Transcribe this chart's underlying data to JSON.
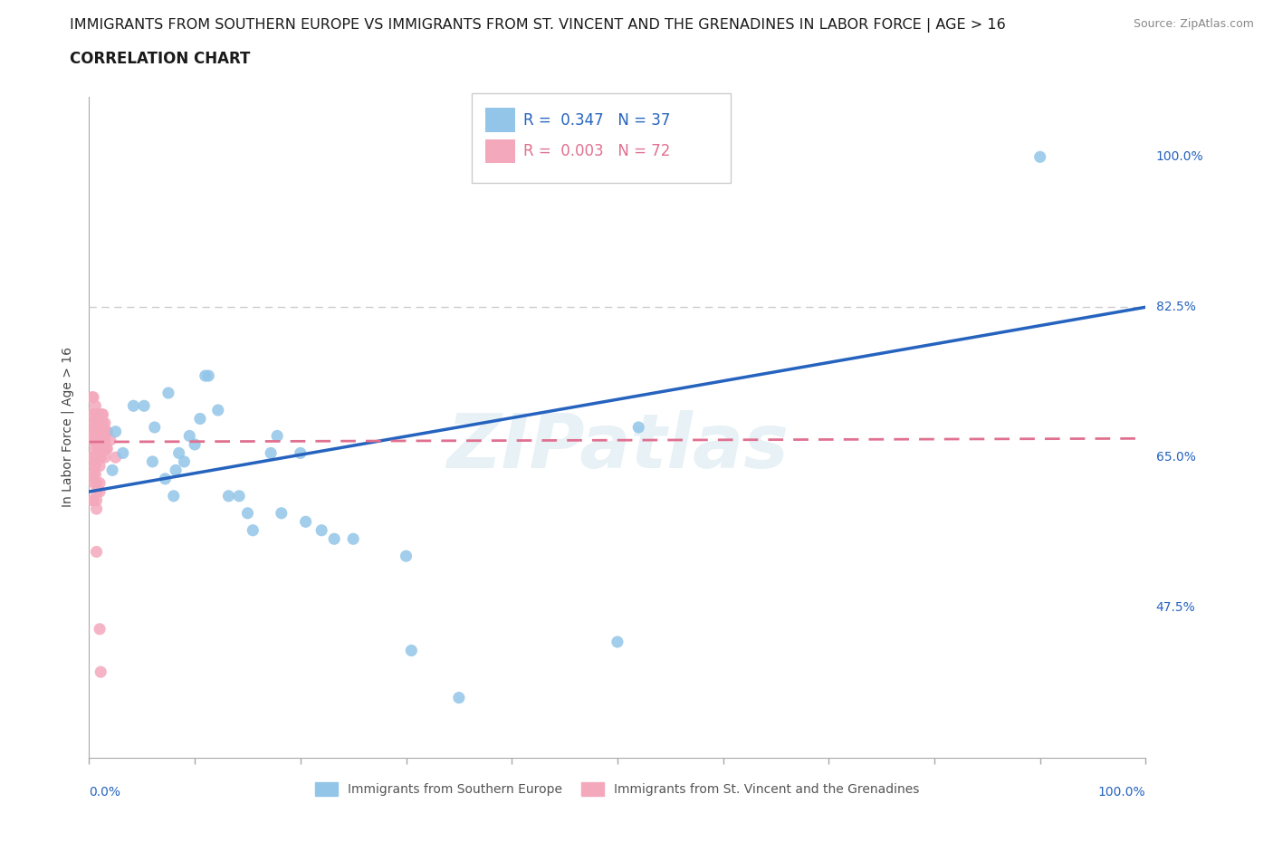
{
  "title_line1": "IMMIGRANTS FROM SOUTHERN EUROPE VS IMMIGRANTS FROM ST. VINCENT AND THE GRENADINES IN LABOR FORCE | AGE > 16",
  "title_line2": "CORRELATION CHART",
  "source_text": "Source: ZipAtlas.com",
  "ylabel": "In Labor Force | Age > 16",
  "xmin": 0.0,
  "xmax": 1.0,
  "ymin": 0.3,
  "ymax": 1.07,
  "yticks": [
    0.475,
    0.65,
    0.825,
    1.0
  ],
  "ytick_labels": [
    "47.5%",
    "65.0%",
    "82.5%",
    "100.0%"
  ],
  "blue_R": "0.347",
  "blue_N": "37",
  "pink_R": "0.003",
  "pink_N": "72",
  "blue_color": "#92C5E8",
  "pink_color": "#F4A8BC",
  "blue_line_color": "#2563BE",
  "pink_line_color": "#E07090",
  "legend_label_blue": "Immigrants from Southern Europe",
  "legend_label_pink": "Immigrants from St. Vincent and the Grenadines",
  "watermark": "ZIPatlas",
  "blue_scatter_x": [
    0.022,
    0.025,
    0.032,
    0.042,
    0.052,
    0.06,
    0.062,
    0.072,
    0.075,
    0.08,
    0.082,
    0.085,
    0.09,
    0.095,
    0.1,
    0.105,
    0.11,
    0.113,
    0.122,
    0.132,
    0.142,
    0.15,
    0.155,
    0.172,
    0.178,
    0.182,
    0.2,
    0.205,
    0.22,
    0.232,
    0.25,
    0.3,
    0.305,
    0.35,
    0.5,
    0.52,
    0.9
  ],
  "blue_scatter_y": [
    0.635,
    0.68,
    0.655,
    0.71,
    0.71,
    0.645,
    0.685,
    0.625,
    0.725,
    0.605,
    0.635,
    0.655,
    0.645,
    0.675,
    0.665,
    0.695,
    0.745,
    0.745,
    0.705,
    0.605,
    0.605,
    0.585,
    0.565,
    0.655,
    0.675,
    0.585,
    0.655,
    0.575,
    0.565,
    0.555,
    0.555,
    0.535,
    0.425,
    0.37,
    0.435,
    0.685,
    1.0
  ],
  "pink_scatter_x": [
    0.003,
    0.003,
    0.003,
    0.003,
    0.003,
    0.003,
    0.003,
    0.003,
    0.004,
    0.004,
    0.004,
    0.004,
    0.004,
    0.004,
    0.004,
    0.004,
    0.005,
    0.005,
    0.005,
    0.005,
    0.005,
    0.005,
    0.005,
    0.006,
    0.006,
    0.006,
    0.006,
    0.006,
    0.006,
    0.006,
    0.006,
    0.007,
    0.007,
    0.007,
    0.007,
    0.007,
    0.008,
    0.008,
    0.008,
    0.008,
    0.009,
    0.009,
    0.009,
    0.009,
    0.009,
    0.01,
    0.01,
    0.01,
    0.01,
    0.01,
    0.011,
    0.011,
    0.011,
    0.011,
    0.012,
    0.012,
    0.013,
    0.013,
    0.013,
    0.013,
    0.014,
    0.014,
    0.015,
    0.015,
    0.015,
    0.015,
    0.016,
    0.016,
    0.017,
    0.017,
    0.02,
    0.025
  ],
  "pink_scatter_y": [
    0.72,
    0.7,
    0.68,
    0.67,
    0.65,
    0.65,
    0.63,
    0.6,
    0.72,
    0.7,
    0.68,
    0.67,
    0.65,
    0.65,
    0.63,
    0.6,
    0.69,
    0.67,
    0.65,
    0.64,
    0.62,
    0.7,
    0.69,
    0.71,
    0.7,
    0.68,
    0.67,
    0.66,
    0.65,
    0.64,
    0.63,
    0.62,
    0.61,
    0.6,
    0.59,
    0.54,
    0.7,
    0.68,
    0.66,
    0.65,
    0.7,
    0.69,
    0.68,
    0.67,
    0.66,
    0.65,
    0.64,
    0.62,
    0.61,
    0.45,
    0.68,
    0.66,
    0.65,
    0.4,
    0.7,
    0.68,
    0.7,
    0.69,
    0.68,
    0.67,
    0.68,
    0.66,
    0.69,
    0.67,
    0.65,
    0.68,
    0.66,
    0.68,
    0.68,
    0.66,
    0.67,
    0.65
  ],
  "blue_trendline_x": [
    0.0,
    1.0
  ],
  "blue_trendline_y": [
    0.61,
    0.825
  ],
  "pink_trendline_x": [
    0.0,
    1.0
  ],
  "pink_trendline_y": [
    0.668,
    0.672
  ],
  "hline_y": 0.825,
  "background_color": "#ffffff",
  "n_xticks": 10,
  "tick_fontsize": 10,
  "legend_fontsize": 12
}
